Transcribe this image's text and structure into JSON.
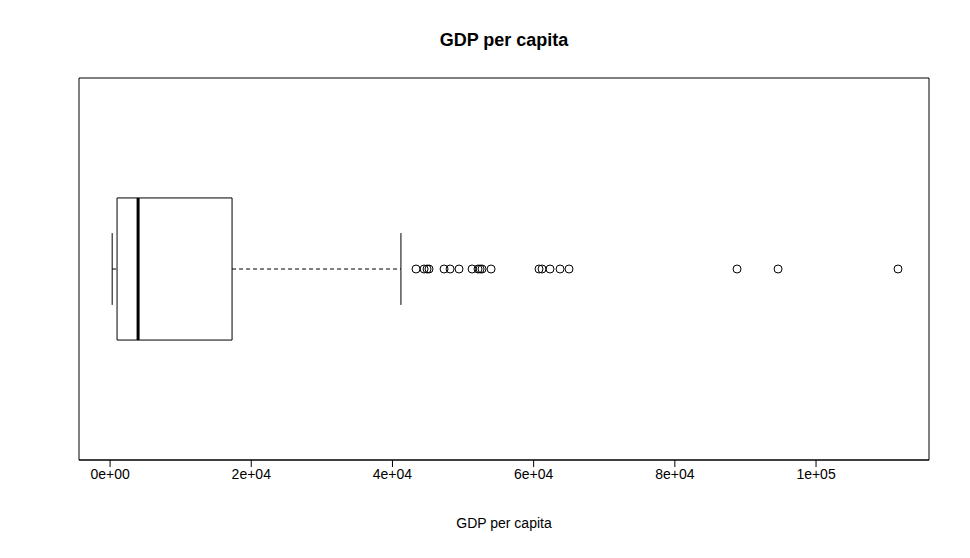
{
  "chart_data": {
    "type": "box",
    "title": "GDP per capita",
    "x_label": "GDP per capita",
    "orientation": "horizontal",
    "xlim": [
      -4400,
      116000
    ],
    "xticks": [
      {
        "value": 0,
        "label": "0e+00"
      },
      {
        "value": 20000,
        "label": "2e+04"
      },
      {
        "value": 40000,
        "label": "4e+04"
      },
      {
        "value": 60000,
        "label": "6e+04"
      },
      {
        "value": 80000,
        "label": "8e+04"
      },
      {
        "value": 100000,
        "label": "1e+05"
      }
    ],
    "whisker_low": 300,
    "q1": 990,
    "median": 3970,
    "q3": 17280,
    "whisker_high": 41200,
    "outliers": [
      43340,
      44480,
      44900,
      45180,
      47310,
      48160,
      49430,
      51280,
      52120,
      52410,
      52690,
      53970,
      60760,
      61190,
      62320,
      63740,
      65010,
      88810,
      94620,
      111610
    ],
    "color": "#000000"
  }
}
